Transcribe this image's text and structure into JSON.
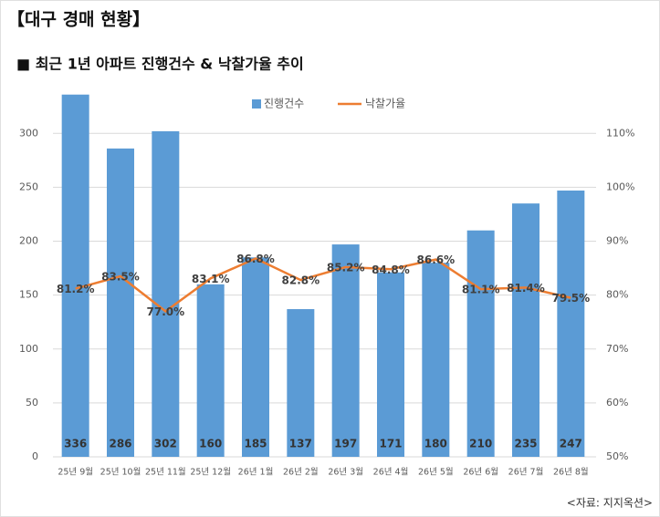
{
  "title": "【대구 경매 현황】",
  "subtitle": "■ 최근 1년 아파트 진행건수 & 낙찰가율 추이",
  "source": "<자료: 지지옥션>",
  "chart_data": {
    "type": "bar_line",
    "categories": [
      "25년 9월",
      "25년 10월",
      "25년 11월",
      "25년 12월",
      "26년 1월",
      "26년 2월",
      "26년 3월",
      "26년 4월",
      "26년 5월",
      "26년 6월",
      "26년 7월",
      "26년 8월"
    ],
    "series": [
      {
        "name": "진행건수",
        "type": "bar",
        "color": "#5b9bd5",
        "values": [
          336,
          286,
          302,
          160,
          185,
          137,
          197,
          171,
          180,
          210,
          235,
          247
        ]
      },
      {
        "name": "낙찰가율",
        "type": "line",
        "axis": "y2",
        "color": "#ed7d31",
        "values": [
          81.2,
          83.5,
          77.0,
          83.1,
          86.8,
          82.8,
          85.2,
          84.8,
          86.6,
          81.1,
          81.4,
          79.5
        ],
        "value_labels": [
          "81.2%",
          "83.5%",
          "77.0%",
          "83.1%",
          "86.8%",
          "82.8%",
          "85.2%",
          "84.8%",
          "86.6%",
          "81.1%",
          "81.4%",
          "79.5%"
        ]
      }
    ],
    "ylim": [
      0,
      340
    ],
    "yticks": [
      0,
      50,
      100,
      150,
      200,
      250,
      300
    ],
    "y2lim": [
      50,
      118
    ],
    "y2ticks": [
      {
        "value": 50,
        "label": "50%"
      },
      {
        "value": 60,
        "label": "60%"
      },
      {
        "value": 70,
        "label": "70%"
      },
      {
        "value": 80,
        "label": "80%"
      },
      {
        "value": 90,
        "label": "90%"
      },
      {
        "value": 100,
        "label": "100%"
      },
      {
        "value": 110,
        "label": "110%"
      }
    ],
    "grid": true,
    "legend": "top"
  }
}
